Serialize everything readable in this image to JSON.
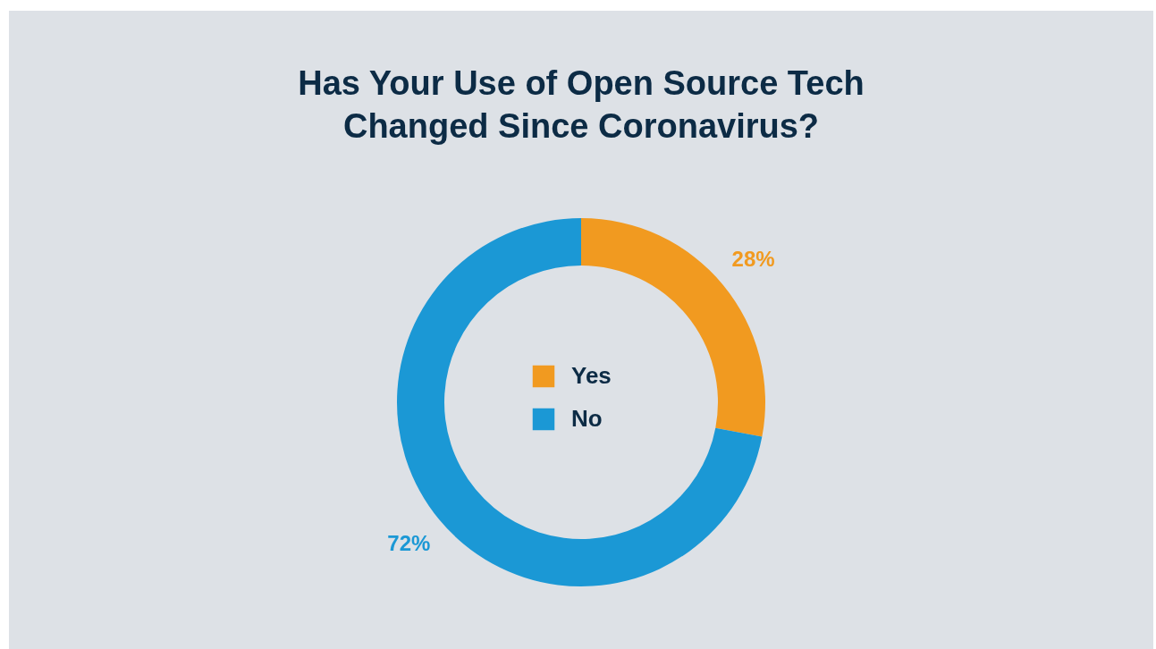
{
  "chart_data": {
    "type": "donut",
    "title": "Has Your Use of Open Source Tech Changed Since Coronavirus?",
    "categories": [
      "Yes",
      "No"
    ],
    "values": [
      28,
      72
    ],
    "colors": [
      "#f19a20",
      "#1b98d5"
    ],
    "value_labels": [
      "28%",
      "72%"
    ],
    "legend": "center"
  }
}
